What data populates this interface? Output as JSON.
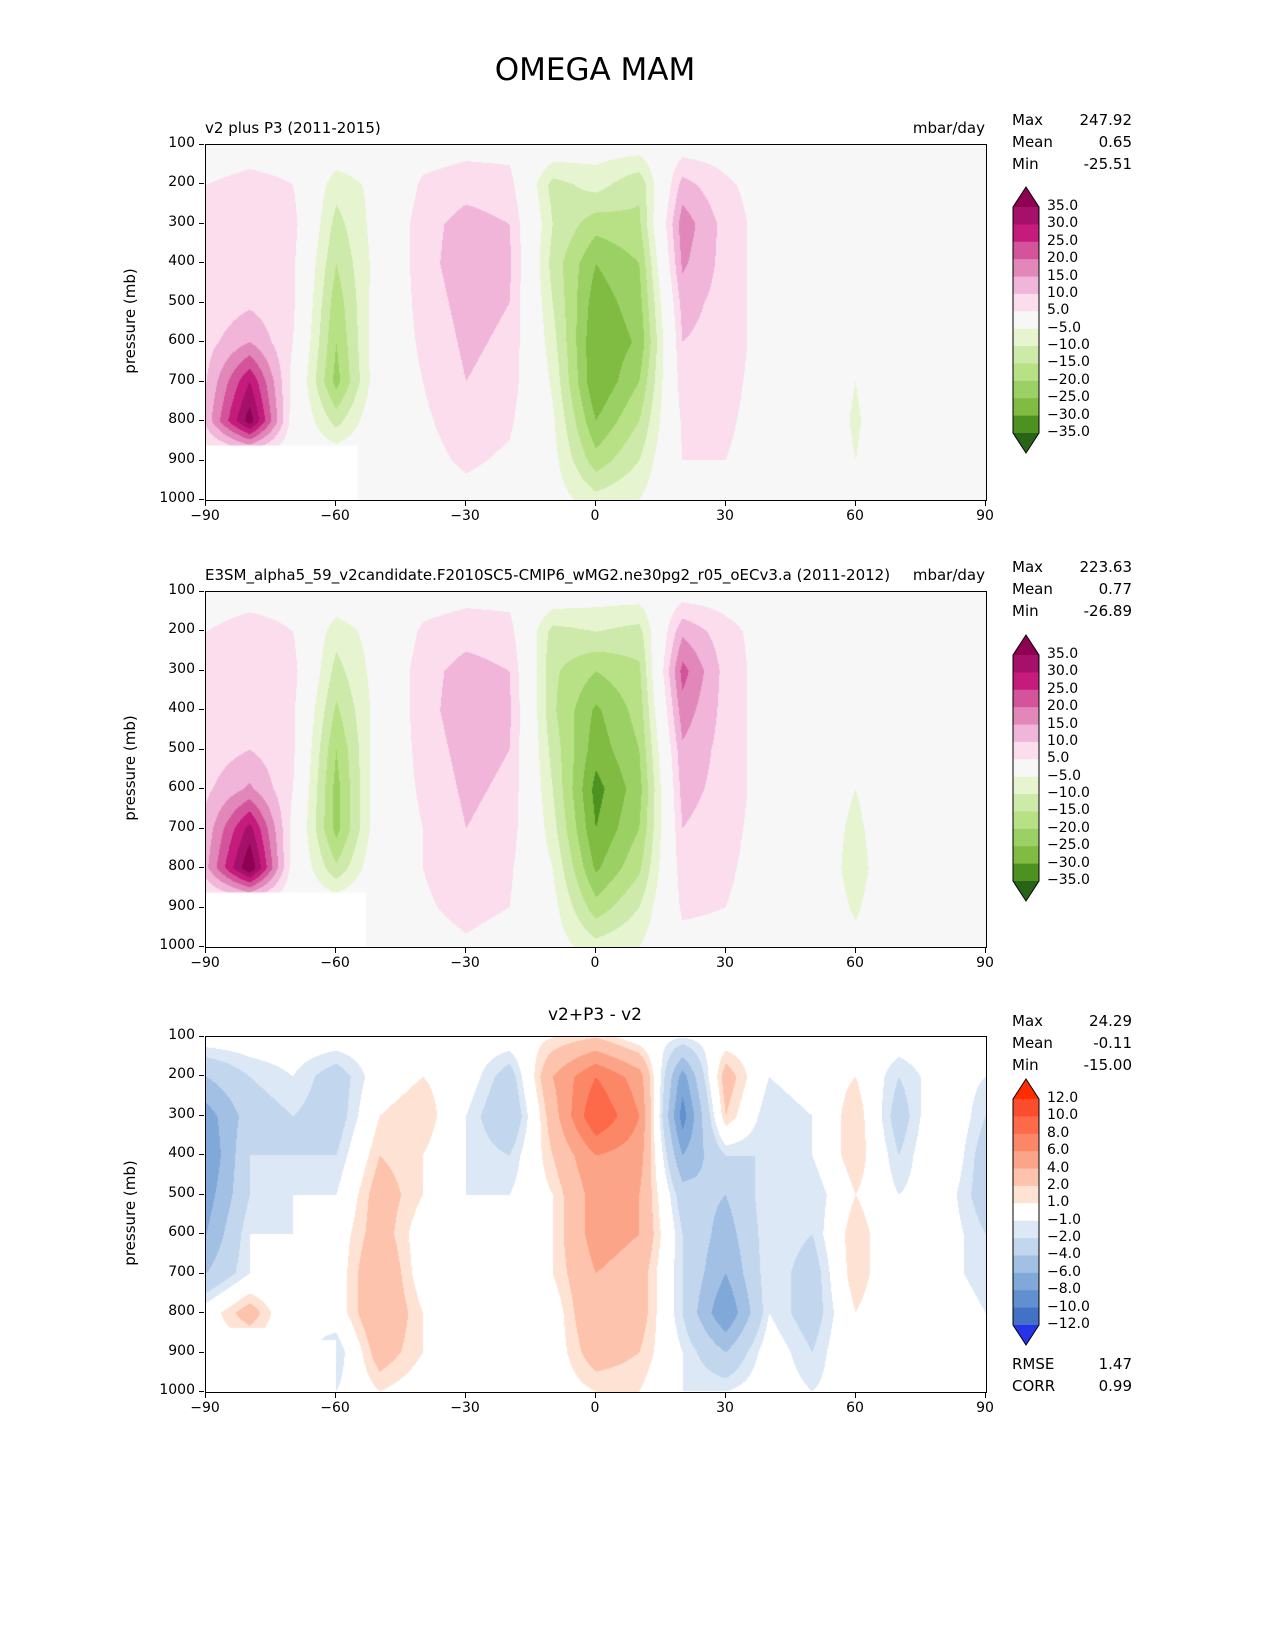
{
  "figure_title": "OMEGA MAM",
  "chart_data": [
    {
      "type": "filled-contour",
      "title": "v2 plus P3 (2011-2015)",
      "units": "mbar/day",
      "ylabel": "pressure (mb)",
      "xlim": [
        -90,
        90
      ],
      "ylim": [
        100,
        1000
      ],
      "x_ticks": [
        "−90",
        "−60",
        "−30",
        "0",
        "30",
        "60",
        "90"
      ],
      "x_tick_values": [
        -90,
        -60,
        -30,
        0,
        30,
        60,
        90
      ],
      "y_ticks": [
        100,
        200,
        300,
        400,
        500,
        600,
        700,
        800,
        900,
        1000
      ],
      "stats": [
        {
          "label": "Max",
          "value": "247.92"
        },
        {
          "label": "Mean",
          "value": "0.65"
        },
        {
          "label": "Min",
          "value": "-25.51"
        }
      ],
      "colorbar": {
        "levels": [
          35,
          30,
          25,
          20,
          15,
          10,
          5,
          -5,
          -10,
          -15,
          -20,
          -25,
          -30,
          -35
        ],
        "colors": [
          "#8e0152",
          "#a5106b",
          "#c51b7d",
          "#d4549b",
          "#e287ba",
          "#f0b5d9",
          "#fbddee",
          "#f7f7f7",
          "#e6f5d0",
          "#cdeaaa",
          "#b8e186",
          "#9bd164",
          "#7fbc41",
          "#4d9221",
          "#276419"
        ]
      },
      "grid": {
        "lats": [
          -90,
          -80,
          -70,
          -60,
          -50,
          -40,
          -30,
          -20,
          -10,
          0,
          10,
          20,
          30,
          40,
          50,
          60,
          70,
          80,
          90
        ],
        "pressures": [
          100,
          200,
          300,
          400,
          500,
          600,
          700,
          800,
          900,
          1000
        ],
        "values": [
          [
            1,
            2,
            2,
            0,
            0,
            2,
            3,
            3,
            0,
            -2,
            -2,
            2,
            2,
            1,
            0,
            0,
            0,
            0,
            0
          ],
          [
            5,
            7,
            5,
            -8,
            -3,
            6,
            8,
            7,
            -12,
            -8,
            -14,
            12,
            6,
            2,
            1,
            0,
            1,
            1,
            0
          ],
          [
            6,
            9,
            7,
            -12,
            -2,
            8,
            12,
            10,
            -10,
            -18,
            -16,
            18,
            8,
            2,
            2,
            0,
            4,
            4,
            0
          ],
          [
            5,
            8,
            6,
            -15,
            -2,
            8,
            13,
            11,
            -12,
            -25,
            -20,
            16,
            8,
            2,
            2,
            0,
            5,
            4,
            0
          ],
          [
            6,
            9,
            6,
            -18,
            -1,
            7,
            12,
            10,
            -10,
            -28,
            -22,
            12,
            8,
            2,
            2,
            -1,
            5,
            4,
            0
          ],
          [
            8,
            15,
            5,
            -20,
            0,
            6,
            11,
            9,
            -8,
            -30,
            -24,
            10,
            8,
            2,
            1,
            -3,
            4,
            3,
            0
          ],
          [
            10,
            30,
            3,
            -22,
            0,
            5,
            10,
            8,
            -6,
            -30,
            -20,
            8,
            7,
            2,
            1,
            -5,
            3,
            2,
            0
          ],
          [
            12,
            38,
            2,
            -12,
            1,
            4,
            8,
            6,
            -4,
            -25,
            -15,
            6,
            6,
            2,
            1,
            -6,
            2,
            2,
            0
          ],
          [
            null,
            null,
            null,
            null,
            0,
            3,
            6,
            4,
            -3,
            -18,
            -10,
            5,
            5,
            2,
            1,
            -5,
            2,
            1,
            0
          ],
          [
            null,
            null,
            null,
            -4,
            -4,
            2,
            3,
            2,
            -2,
            -8,
            -5,
            3,
            3,
            1,
            0,
            -2,
            1,
            0,
            0
          ]
        ]
      },
      "mask": [
        [
          -90,
          862
        ],
        [
          -55,
          862
        ],
        [
          -55,
          1000
        ],
        [
          -90,
          1000
        ]
      ]
    },
    {
      "type": "filled-contour",
      "title": "E3SM_alpha5_59_v2candidate.F2010SC5-CMIP6_wMG2.ne30pg2_r05_oECv3.a (2011-2012)",
      "units": "mbar/day",
      "ylabel": "pressure (mb)",
      "xlim": [
        -90,
        90
      ],
      "ylim": [
        100,
        1000
      ],
      "x_ticks": [
        "−90",
        "−60",
        "−30",
        "0",
        "30",
        "60",
        "90"
      ],
      "x_tick_values": [
        -90,
        -60,
        -30,
        0,
        30,
        60,
        90
      ],
      "y_ticks": [
        100,
        200,
        300,
        400,
        500,
        600,
        700,
        800,
        900,
        1000
      ],
      "stats": [
        {
          "label": "Max",
          "value": "223.63"
        },
        {
          "label": "Mean",
          "value": "0.77"
        },
        {
          "label": "Min",
          "value": "-26.89"
        }
      ],
      "colorbar": {
        "levels": [
          35,
          30,
          25,
          20,
          15,
          10,
          5,
          -5,
          -10,
          -15,
          -20,
          -25,
          -30,
          -35
        ],
        "colors": [
          "#8e0152",
          "#a5106b",
          "#c51b7d",
          "#d4549b",
          "#e287ba",
          "#f0b5d9",
          "#fbddee",
          "#f7f7f7",
          "#e6f5d0",
          "#cdeaaa",
          "#b8e186",
          "#9bd164",
          "#7fbc41",
          "#4d9221",
          "#276419"
        ]
      },
      "grid": {
        "lats": [
          -90,
          -80,
          -70,
          -60,
          -50,
          -40,
          -30,
          -20,
          -10,
          0,
          10,
          20,
          30,
          40,
          50,
          60,
          70,
          80,
          90
        ],
        "pressures": [
          100,
          200,
          300,
          400,
          500,
          600,
          700,
          800,
          900,
          1000
        ],
        "values": [
          [
            1,
            2,
            2,
            0,
            0,
            2,
            3,
            3,
            0,
            -2,
            -2,
            2,
            2,
            1,
            0,
            0,
            0,
            0,
            0
          ],
          [
            5,
            8,
            5,
            -8,
            -2,
            6,
            8,
            7,
            -12,
            -10,
            -12,
            14,
            7,
            2,
            1,
            0,
            1,
            1,
            0
          ],
          [
            6,
            10,
            7,
            -12,
            -2,
            8,
            12,
            10,
            -14,
            -20,
            -16,
            22,
            8,
            2,
            2,
            0,
            3,
            3,
            0
          ],
          [
            6,
            9,
            6,
            -16,
            -2,
            8,
            13,
            11,
            -14,
            -26,
            -18,
            18,
            8,
            2,
            2,
            0,
            4,
            3,
            0
          ],
          [
            7,
            10,
            6,
            -20,
            -1,
            7,
            12,
            10,
            -12,
            -28,
            -20,
            14,
            8,
            2,
            2,
            -2,
            4,
            3,
            0
          ],
          [
            9,
            16,
            5,
            -22,
            0,
            6,
            11,
            9,
            -10,
            -32,
            -22,
            12,
            8,
            2,
            1,
            -5,
            3,
            2,
            0
          ],
          [
            12,
            32,
            3,
            -22,
            0,
            5,
            10,
            8,
            -8,
            -30,
            -20,
            10,
            7,
            2,
            1,
            -7,
            3,
            2,
            0
          ],
          [
            14,
            40,
            2,
            -14,
            1,
            5,
            9,
            6,
            -5,
            -26,
            -16,
            8,
            6,
            2,
            1,
            -8,
            2,
            2,
            0
          ],
          [
            null,
            null,
            null,
            null,
            1,
            4,
            7,
            5,
            -3,
            -18,
            -10,
            6,
            5,
            2,
            1,
            -6,
            2,
            1,
            0
          ],
          [
            null,
            null,
            null,
            -4,
            -4,
            2,
            4,
            2,
            -2,
            -8,
            -5,
            3,
            3,
            1,
            0,
            -3,
            1,
            0,
            0
          ]
        ]
      },
      "mask": [
        [
          -90,
          862
        ],
        [
          -53,
          862
        ],
        [
          -53,
          1000
        ],
        [
          -90,
          1000
        ]
      ]
    },
    {
      "type": "filled-contour",
      "title": "v2+P3 - v2",
      "units": "",
      "ylabel": "pressure (mb)",
      "xlim": [
        -90,
        90
      ],
      "ylim": [
        100,
        1000
      ],
      "x_ticks": [
        "−90",
        "−60",
        "−30",
        "0",
        "30",
        "60",
        "90"
      ],
      "x_tick_values": [
        -90,
        -60,
        -30,
        0,
        30,
        60,
        90
      ],
      "y_ticks": [
        100,
        200,
        300,
        400,
        500,
        600,
        700,
        800,
        900,
        1000
      ],
      "stats": [
        {
          "label": "Max",
          "value": "24.29"
        },
        {
          "label": "Mean",
          "value": "-0.11"
        },
        {
          "label": "Min",
          "value": "-15.00"
        }
      ],
      "extra_stats": [
        {
          "label": "RMSE",
          "value": "1.47"
        },
        {
          "label": "CORR",
          "value": "0.99"
        }
      ],
      "colorbar": {
        "levels": [
          12,
          10,
          8,
          6,
          4,
          2,
          1,
          -1,
          -2,
          -4,
          -6,
          -8,
          -10,
          -12
        ],
        "colors": [
          "#ff2d00",
          "#fb4c2e",
          "#fc6a4a",
          "#fc8767",
          "#fca488",
          "#fdc3ac",
          "#fee3d4",
          "#ffffff",
          "#dce8f5",
          "#c2d6ee",
          "#a2c0e4",
          "#80a8d8",
          "#6090cf",
          "#4272c8",
          "#2633e6"
        ]
      },
      "grid": {
        "lats": [
          -90,
          -80,
          -70,
          -60,
          -50,
          -40,
          -30,
          -20,
          -10,
          0,
          10,
          20,
          30,
          40,
          50,
          60,
          70,
          80,
          90
        ],
        "pressures": [
          100,
          200,
          300,
          400,
          500,
          600,
          700,
          800,
          900,
          1000
        ],
        "values": [
          [
            0,
            0,
            0,
            0,
            0,
            0,
            0,
            0,
            1,
            2,
            0,
            -1,
            0,
            0,
            0,
            0,
            0,
            0,
            0
          ],
          [
            -4,
            -2,
            -1,
            -3,
            0,
            1,
            0,
            -3,
            4,
            8,
            5,
            -7,
            3,
            -1,
            0,
            1,
            -2,
            0,
            -1
          ],
          [
            -7,
            -3,
            -2,
            -3,
            1,
            2,
            -1,
            -4,
            3,
            10,
            6,
            -9,
            2,
            -2,
            -1,
            2,
            -3,
            1,
            -2
          ],
          [
            -8,
            -2,
            -2,
            -2,
            2,
            1,
            -1,
            -2,
            2,
            6,
            5,
            -6,
            -2,
            -2,
            -1,
            2,
            -2,
            1,
            -3
          ],
          [
            -7,
            -2,
            -1,
            -1,
            3,
            1,
            -1,
            -1,
            1,
            5,
            4,
            -3,
            -4,
            -1,
            -2,
            1,
            -1,
            0,
            -3
          ],
          [
            -6,
            -1,
            -1,
            0,
            3,
            0,
            -1,
            -1,
            1,
            5,
            4,
            -2,
            -5,
            -1,
            -2,
            2,
            -1,
            0,
            -2
          ],
          [
            -4,
            -1,
            -1,
            0,
            4,
            0,
            -1,
            -1,
            1,
            4,
            3,
            -2,
            -6,
            -1,
            -3,
            2,
            -1,
            0,
            -2
          ],
          [
            0,
            3,
            -1,
            0,
            4,
            1,
            -1,
            -1,
            0,
            4,
            3,
            -2,
            -8,
            -1,
            -3,
            1,
            -1,
            1,
            -1
          ],
          [
            null,
            null,
            null,
            -2,
            3,
            1,
            0,
            -1,
            0,
            3,
            2,
            -1,
            -4,
            0,
            -2,
            1,
            0,
            1,
            -1
          ],
          [
            null,
            null,
            null,
            -1,
            1,
            0,
            0,
            0,
            0,
            1,
            1,
            -1,
            -1,
            0,
            -1,
            0,
            0,
            0,
            0
          ]
        ]
      },
      "mask": [
        [
          -90,
          838
        ],
        [
          -76,
          838
        ],
        [
          -76,
          868
        ],
        [
          -60,
          868
        ],
        [
          -60,
          1000
        ],
        [
          -90,
          1000
        ]
      ]
    }
  ]
}
